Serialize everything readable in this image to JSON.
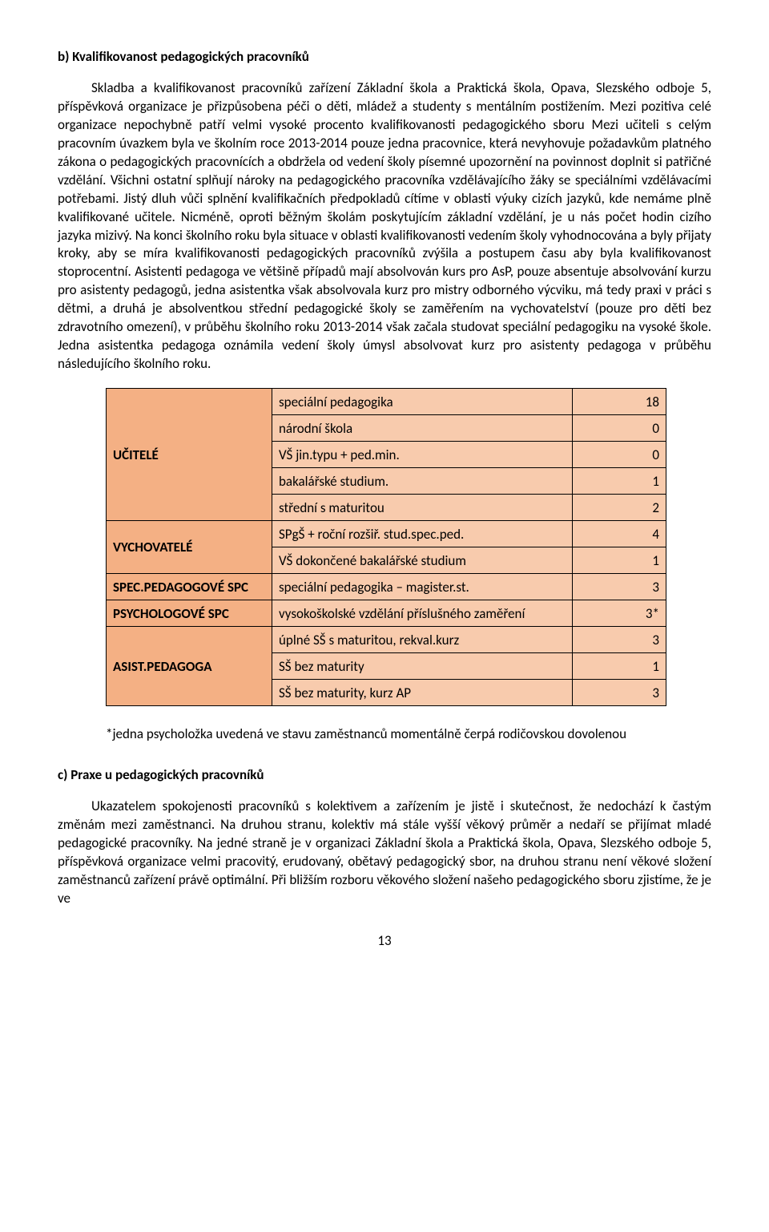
{
  "headingB": "b) Kvalifikovanost  pedagogických pracovníků",
  "para1": "Skladba a kvalifikovanost pracovníků zařízení Základní škola a Praktická škola, Opava, Slezského odboje 5, příspěvková organizace je přizpůsobena péči o děti, mládež a studenty s mentálním postižením. Mezi pozitiva celé organizace nepochybně patří velmi vysoké procento kvalifikovanosti pedagogického sboru Mezi učiteli s celým pracovním úvazkem byla ve školním roce 2013-2014 pouze jedna pracovnice, která nevyhovuje požadavkům platného zákona o pedagogických pracovnících a obdržela od vedení školy písemné upozornění na povinnost doplnit si patřičné vzdělání. Všichni ostatní splňují nároky na pedagogického pracovníka vzdělávajícího žáky se speciálními vzdělávacími potřebami. Jistý dluh vůči splnění kvalifikačních předpokladů cítíme v oblasti výuky cizích jazyků, kde nemáme plně kvalifikované učitele. Nicméně, oproti běžným školám poskytujícím základní vzdělání, je u nás počet hodin cizího jazyka mizivý. Na konci školního roku byla situace v oblasti kvalifikovanosti vedením školy vyhodnocována a byly přijaty kroky, aby se míra kvalifikovanosti pedagogických pracovníků zvýšila a postupem času aby byla kvalifikovanost stoprocentní. Asistenti pedagoga ve většině případů mají absolvován kurs pro AsP, pouze absentuje absolvování kurzu pro asistenty pedagogů, jedna asistentka  však absolvovala kurz pro mistry odborného výcviku, má tedy praxi v práci s dětmi, a druhá je absolventkou střední pedagogické školy se zaměřením na vychovatelství (pouze pro děti bez zdravotního omezení), v průběhu školního roku 2013-2014 však začala studovat speciální pedagogiku na vysoké škole. Jedna asistentka pedagoga oznámila vedení školy úmysl absolvovat kurz pro asistenty pedagoga v průběhu následujícího školního roku.",
  "table": {
    "groups": [
      {
        "label": "UČITELÉ",
        "rows": [
          {
            "desc": "speciální pedagogika",
            "val": "18"
          },
          {
            "desc": "národní škola",
            "val": "0"
          },
          {
            "desc": "VŠ jin.typu + ped.min.",
            "val": "0"
          },
          {
            "desc": "bakalářské studium.",
            "val": "1"
          },
          {
            "desc": "střední s maturitou",
            "val": "2"
          }
        ]
      },
      {
        "label": "VYCHOVATELÉ",
        "rows": [
          {
            "desc": "SPgŠ  + roční rozšiř. stud.spec.ped.",
            "val": "4"
          },
          {
            "desc": "VŠ dokončené bakalářské studium",
            "val": "1"
          }
        ]
      },
      {
        "label": "SPEC.PEDAGOGOVÉ SPC",
        "rows": [
          {
            "desc": "speciální pedagogika – magister.st.",
            "val": "3"
          }
        ]
      },
      {
        "label": "PSYCHOLOGOVÉ SPC",
        "rows": [
          {
            "desc": "vysokoškolské vzdělání příslušného zaměření",
            "val": "3*"
          }
        ]
      },
      {
        "label": "ASIST.PEDAGOGA",
        "rows": [
          {
            "desc": "úplné SŠ s maturitou, rekval.kurz",
            "val": "3"
          },
          {
            "desc": "SŠ bez maturity",
            "val": "1"
          },
          {
            "desc": "SŠ bez maturity, kurz AP",
            "val": "3"
          }
        ]
      }
    ]
  },
  "note": "*jedna psycholožka uvedená ve stavu zaměstnanců momentálně čerpá rodičovskou dovolenou",
  "headingC": "c) Praxe u pedagogických pracovníků",
  "para2": "Ukazatelem spokojenosti pracovníků s kolektivem a zařízením je jistě i skutečnost, že nedochází k častým změnám mezi zaměstnanci. Na druhou stranu, kolektiv má stále vyšší věkový průměr a nedaří se přijímat mladé pedagogické pracovníky. Na jedné straně je v organizaci Základní škola a Praktická škola, Opava, Slezského odboje 5, příspěvková organizace velmi pracovitý, erudovaný, obětavý pedagogický sbor, na druhou stranu není věkové složení zaměstnanců zařízení právě optimální. Při bližším rozboru věkového složení našeho pedagogického sboru  zjistíme, že je ve",
  "pageNumber": "13"
}
